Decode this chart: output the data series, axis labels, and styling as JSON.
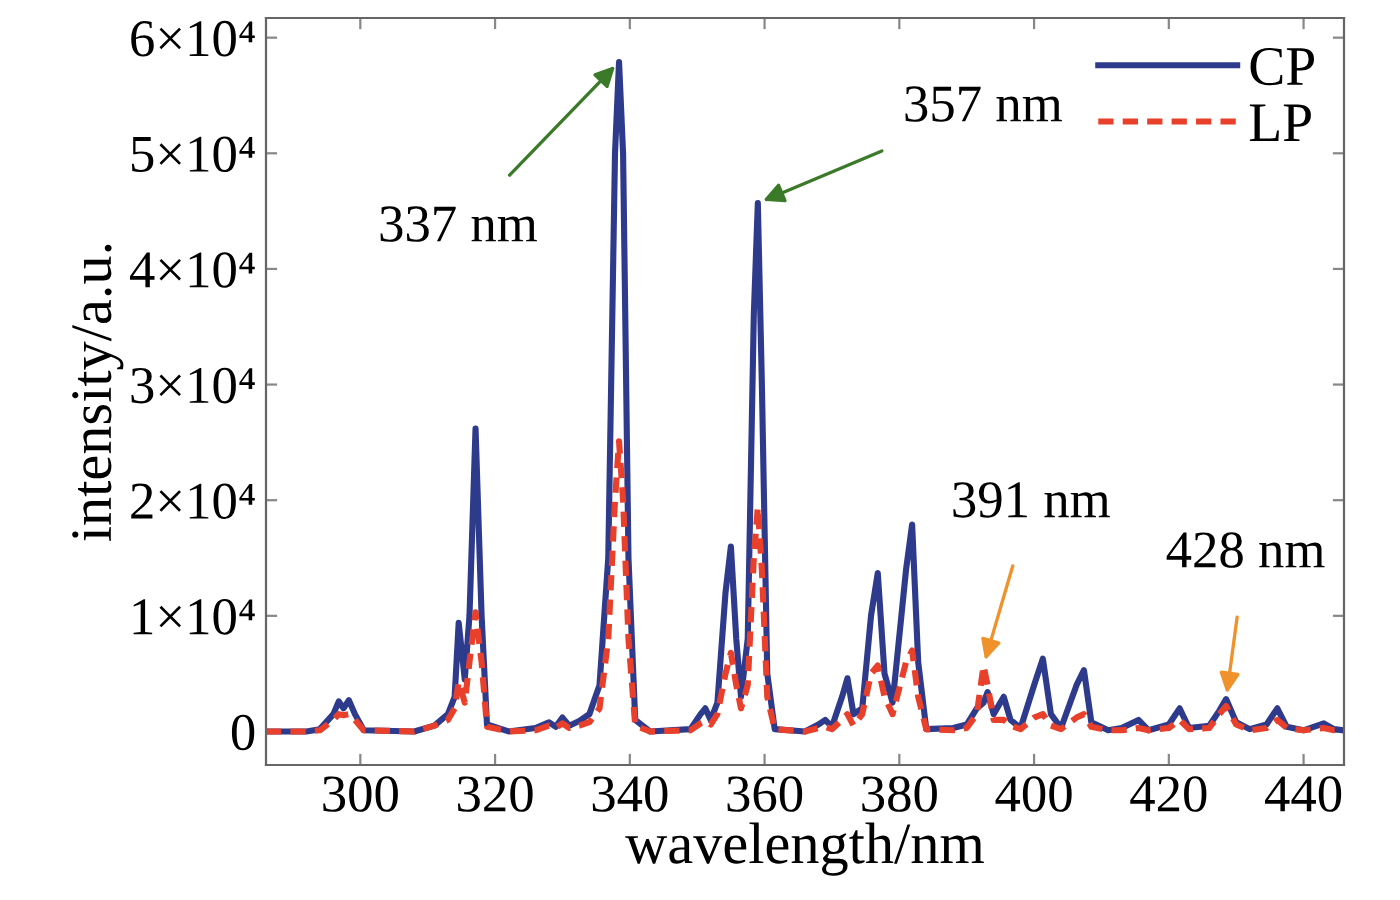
{
  "chart_data": {
    "type": "line",
    "xlabel": "wavelength/nm",
    "ylabel": "intensity/a.u.",
    "xlim": [
      286,
      446
    ],
    "ylim": [
      -2900,
      61700
    ],
    "xticks": [
      300,
      320,
      340,
      360,
      380,
      400,
      420,
      440
    ],
    "yticks": [
      0,
      {
        "value": 10000,
        "label": "1×10⁴"
      },
      {
        "value": 20000,
        "label": "2×10⁴"
      },
      {
        "value": 30000,
        "label": "3×10⁴"
      },
      {
        "value": 40000,
        "label": "4×10⁴"
      },
      {
        "value": 50000,
        "label": "5×10⁴"
      },
      {
        "value": 60000,
        "label": "6×10⁴"
      }
    ],
    "x": [
      286,
      292,
      294,
      296,
      296.8,
      297.5,
      298.3,
      299.2,
      300.5,
      308,
      311,
      313,
      314,
      314.6,
      315.5,
      316.2,
      317.1,
      318,
      318.8,
      322,
      326,
      328,
      329,
      330,
      331,
      332.5,
      334,
      335.5,
      336.8,
      337.8,
      338.4,
      339,
      339.8,
      340.8,
      343,
      349,
      350.5,
      351.2,
      352,
      353,
      354.2,
      355,
      355.8,
      356.5,
      357.5,
      358.4,
      359,
      359.6,
      360.4,
      361.5,
      366,
      368,
      369,
      370,
      371.5,
      372.3,
      373.2,
      374.5,
      375.8,
      376.8,
      377.8,
      379,
      381,
      381.9,
      382.8,
      384,
      388,
      390,
      391.5,
      392.5,
      393.1,
      394,
      395.5,
      396.5,
      398,
      400,
      401.3,
      402.5,
      404,
      406.3,
      407.4,
      408.5,
      411,
      413,
      415.5,
      417,
      420,
      421.6,
      423,
      426,
      427.5,
      428.5,
      430,
      432,
      434.5,
      436.1,
      437.5,
      440,
      443,
      444.5,
      446
    ],
    "series": [
      {
        "name": "CP",
        "color": "#2e3a8c",
        "line_style": "solid",
        "values": [
          0,
          0,
          200,
          1500,
          2600,
          2000,
          2700,
          1500,
          100,
          0,
          500,
          1500,
          3000,
          9400,
          4500,
          10000,
          26200,
          10000,
          600,
          0,
          300,
          800,
          400,
          1200,
          500,
          900,
          1500,
          4000,
          15000,
          50000,
          57900,
          50000,
          15000,
          1000,
          0,
          200,
          1500,
          2000,
          1000,
          2500,
          12000,
          16000,
          8000,
          3000,
          8000,
          36000,
          45700,
          30000,
          5000,
          200,
          0,
          600,
          1000,
          400,
          3000,
          4600,
          1500,
          2000,
          10000,
          13700,
          5000,
          2500,
          14000,
          17900,
          6000,
          200,
          300,
          600,
          2000,
          2500,
          3400,
          1500,
          3000,
          1000,
          300,
          4000,
          6300,
          1500,
          300,
          4000,
          5300,
          800,
          100,
          300,
          1000,
          100,
          600,
          2000,
          300,
          500,
          1800,
          2800,
          800,
          200,
          600,
          2000,
          400,
          100,
          700,
          200,
          100
        ]
      },
      {
        "name": "LP",
        "color": "#e8402a",
        "line_style": "dashed",
        "values": [
          0,
          0,
          100,
          1000,
          1500,
          1400,
          1500,
          1000,
          100,
          0,
          500,
          1000,
          2000,
          4300,
          2500,
          6000,
          10300,
          6000,
          400,
          0,
          100,
          500,
          300,
          700,
          300,
          500,
          800,
          2000,
          8000,
          20000,
          25100,
          20000,
          8000,
          500,
          0,
          100,
          700,
          900,
          600,
          1500,
          5000,
          6800,
          4000,
          2000,
          4000,
          15000,
          19400,
          14000,
          3000,
          200,
          0,
          300,
          400,
          200,
          1000,
          1500,
          500,
          1500,
          5000,
          5700,
          3000,
          1500,
          6000,
          7000,
          3000,
          200,
          100,
          300,
          1500,
          5700,
          4000,
          1000,
          1000,
          500,
          200,
          1200,
          1500,
          500,
          200,
          1200,
          1500,
          400,
          100,
          100,
          300,
          100,
          300,
          1000,
          200,
          300,
          1500,
          2200,
          600,
          100,
          300,
          1000,
          300,
          100,
          300,
          100,
          100
        ]
      }
    ],
    "annotations": [
      {
        "text": "337 nm",
        "x": 338.4,
        "y": 57900
      },
      {
        "text": "357 nm",
        "x": 359,
        "y": 45700
      },
      {
        "text": "391 nm",
        "x": 392.5,
        "y": 5700
      },
      {
        "text": "428 nm",
        "x": 428.5,
        "y": 2800
      }
    ],
    "legend": "top right",
    "grid": false,
    "marker": "none"
  }
}
